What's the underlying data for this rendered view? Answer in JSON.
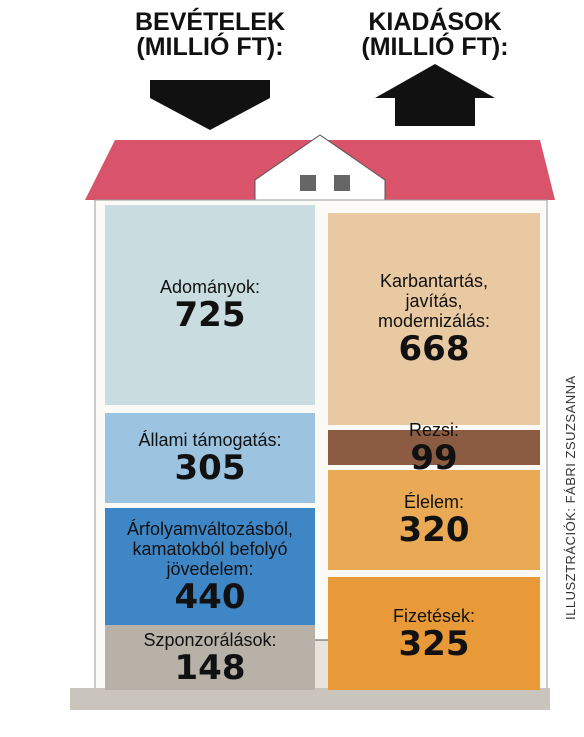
{
  "header": {
    "income_title": [
      "BEVÉTELEK",
      "(MILLIÓ FT):"
    ],
    "expense_title": [
      "KIADÁSOK",
      "(MILLIÓ FT):"
    ]
  },
  "income": [
    {
      "label": [
        "Adományok:"
      ],
      "value": 725
    },
    {
      "label": [
        "Állami támogatás:"
      ],
      "value": 305
    },
    {
      "label": [
        "Árfolyamváltozásból,",
        "kamatokból befolyó",
        "jövedelem:"
      ],
      "value": 440
    },
    {
      "label": [
        "Szponzorálások:"
      ],
      "value": 148
    }
  ],
  "expenses": [
    {
      "label": [
        "Karbantartás,",
        "javítás,",
        "modernizálás:"
      ],
      "value": 668
    },
    {
      "label": [
        "Rezsi:"
      ],
      "value": 99
    },
    {
      "label": [
        "Élelem:"
      ],
      "value": 320
    },
    {
      "label": [
        "Fizetések:"
      ],
      "value": 325
    }
  ],
  "credit": "ILLUSZTRÁCIÓK: FÁBRI ZSUZSANNA"
}
